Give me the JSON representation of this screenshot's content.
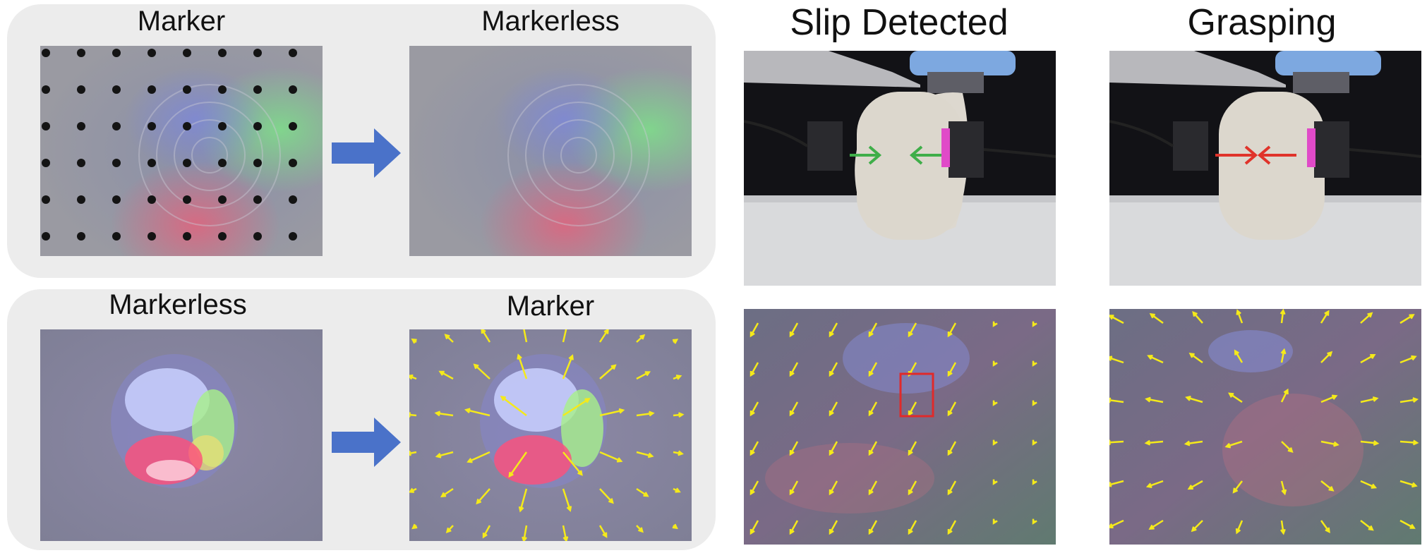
{
  "top_left": {
    "left_label": "Marker",
    "right_label": "Markerless"
  },
  "bottom_left": {
    "left_label": "Markerless",
    "right_label": "Marker"
  },
  "columns": {
    "slip": "Slip Detected",
    "grasp": "Grasping"
  },
  "colors": {
    "panel_bg": "#ececec",
    "block_arrow": "#4a72c9",
    "flow_arrow": "#f5ea1a",
    "slip_arrow": "#3fae49",
    "grasp_arrow": "#e0332a",
    "highlight_box": "#e02a2a"
  }
}
